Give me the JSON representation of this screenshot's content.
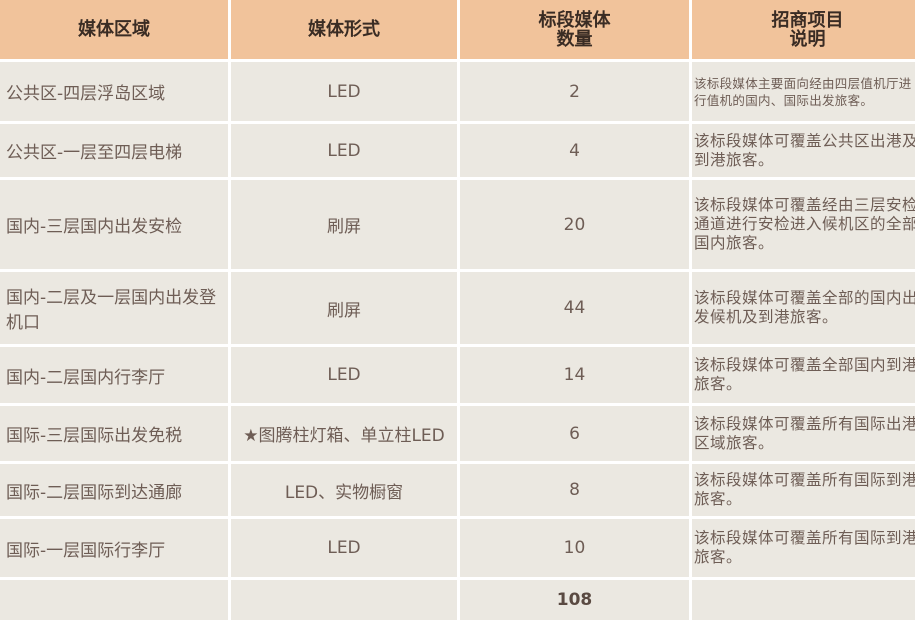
{
  "table": {
    "headers": [
      "媒体区域",
      "媒体形式",
      "标段媒体\n数量",
      "招商项目\n说明"
    ],
    "rows": [
      {
        "area": "公共区-四层浮岛区域",
        "form": "LED",
        "count": "2",
        "desc": "该标段媒体主要面向经由四层值机厅进行值机的国内、国际出发旅客。"
      },
      {
        "area": "公共区-一层至四层电梯",
        "form": "LED",
        "count": "4",
        "desc": "该标段媒体可覆盖公共区出港及到港旅客。"
      },
      {
        "area": "国内-三层国内出发安检",
        "form": "刷屏",
        "count": "20",
        "desc": "该标段媒体可覆盖经由三层安检通道进行安检进入候机区的全部国内旅客。"
      },
      {
        "area": "国内-二层及一层国内出发登机口",
        "form": "刷屏",
        "count": "44",
        "desc": "该标段媒体可覆盖全部的国内出发候机及到港旅客。"
      },
      {
        "area": "国内-二层国内行李厅",
        "form": "LED",
        "count": "14",
        "desc": "该标段媒体可覆盖全部国内到港旅客。"
      },
      {
        "area": "国际-三层国际出发免税",
        "form": "★图腾柱灯箱、单立柱LED",
        "count": "6",
        "desc": "该标段媒体可覆盖所有国际出港区域旅客。"
      },
      {
        "area": "国际-二层国际到达通廊",
        "form": "LED、实物橱窗",
        "count": "8",
        "desc": "该标段媒体可覆盖所有国际到港旅客。"
      },
      {
        "area": "国际-一层国际行李厅",
        "form": "LED",
        "count": "10",
        "desc": "该标段媒体可覆盖所有国际到港旅客。"
      }
    ],
    "total": "108"
  },
  "colors": {
    "header_bg": "#f1c39b",
    "cell_bg": "#ebe8e1",
    "text": "#6e5d55"
  }
}
